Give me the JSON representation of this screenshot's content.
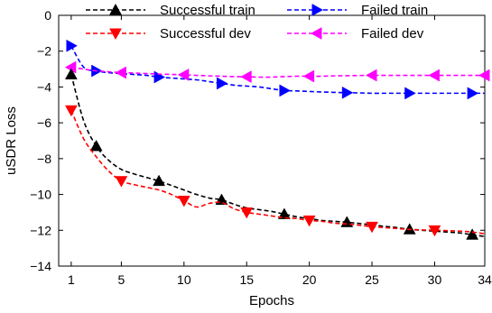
{
  "chart_data": {
    "type": "line",
    "xlabel": "Epochs",
    "ylabel": "uSDR Loss",
    "xlim": [
      0,
      34
    ],
    "ylim": [
      -14,
      0
    ],
    "xticks": [
      1,
      5,
      10,
      15,
      20,
      25,
      30,
      34
    ],
    "yticks": [
      0,
      -2,
      -4,
      -6,
      -8,
      -10,
      -12,
      -14
    ],
    "grid": false,
    "legend_position": "top, two columns",
    "series": [
      {
        "name": "Successful train",
        "color": "#000000",
        "marker": "triangle-up",
        "x": [
          1,
          2,
          3,
          4,
          5,
          6,
          7,
          8,
          9,
          10,
          11,
          12,
          13,
          14,
          15,
          16,
          17,
          18,
          19,
          20,
          21,
          22,
          23,
          24,
          25,
          26,
          27,
          28,
          29,
          30,
          31,
          32,
          33,
          34
        ],
        "y": [
          -3.3,
          -5.9,
          -7.3,
          -8.1,
          -8.6,
          -8.85,
          -9.05,
          -9.25,
          -9.5,
          -9.75,
          -10.0,
          -10.2,
          -10.3,
          -10.55,
          -10.75,
          -10.85,
          -10.95,
          -11.1,
          -11.25,
          -11.35,
          -11.45,
          -11.5,
          -11.55,
          -11.62,
          -11.7,
          -11.78,
          -11.85,
          -11.95,
          -12.0,
          -12.05,
          -12.1,
          -12.15,
          -12.25,
          -12.35
        ],
        "marker_x": [
          1,
          3,
          8,
          13,
          18,
          23,
          28,
          33
        ]
      },
      {
        "name": "Successful dev",
        "color": "#ff0000",
        "marker": "triangle-down",
        "x": [
          1,
          2,
          3,
          4,
          5,
          6,
          7,
          8,
          9,
          10,
          11,
          12,
          13,
          14,
          15,
          16,
          17,
          18,
          19,
          20,
          21,
          22,
          23,
          24,
          25,
          26,
          27,
          28,
          29,
          30,
          31,
          32,
          33,
          34
        ],
        "y": [
          -5.3,
          -6.9,
          -7.9,
          -8.7,
          -9.25,
          -9.45,
          -9.6,
          -9.75,
          -10.0,
          -10.35,
          -10.7,
          -10.5,
          -10.45,
          -10.8,
          -11.0,
          -11.1,
          -11.2,
          -11.3,
          -11.35,
          -11.45,
          -11.5,
          -11.6,
          -11.65,
          -11.72,
          -11.8,
          -11.85,
          -11.9,
          -11.95,
          -11.98,
          -12.0,
          -12.02,
          -12.05,
          -12.1,
          -12.2
        ],
        "marker_x": [
          1,
          5,
          10,
          15,
          20,
          25,
          30
        ]
      },
      {
        "name": "Failed train",
        "color": "#0000ff",
        "marker": "triangle-right",
        "x": [
          1,
          2,
          3,
          4,
          5,
          6,
          7,
          8,
          9,
          10,
          11,
          12,
          13,
          14,
          15,
          16,
          17,
          18,
          19,
          20,
          21,
          22,
          23,
          24,
          25,
          26,
          27,
          28,
          29,
          30,
          31,
          32,
          33,
          34
        ],
        "y": [
          -1.7,
          -2.9,
          -3.1,
          -3.2,
          -3.25,
          -3.3,
          -3.35,
          -3.45,
          -3.5,
          -3.55,
          -3.6,
          -3.7,
          -3.8,
          -3.9,
          -3.95,
          -4.0,
          -4.1,
          -4.2,
          -4.22,
          -4.25,
          -4.28,
          -4.3,
          -4.32,
          -4.33,
          -4.35,
          -4.35,
          -4.35,
          -4.35,
          -4.35,
          -4.35,
          -4.35,
          -4.35,
          -4.35,
          -4.35
        ],
        "marker_x": [
          1,
          3,
          8,
          13,
          18,
          23,
          28,
          33
        ]
      },
      {
        "name": "Failed dev",
        "color": "#ff00ff",
        "marker": "triangle-left",
        "x": [
          1,
          2,
          3,
          4,
          5,
          6,
          7,
          8,
          9,
          10,
          11,
          12,
          13,
          14,
          15,
          16,
          17,
          18,
          19,
          20,
          21,
          22,
          23,
          24,
          25,
          26,
          27,
          28,
          29,
          30,
          31,
          32,
          33,
          34
        ],
        "y": [
          -2.9,
          -3.0,
          -3.1,
          -3.15,
          -3.2,
          -3.22,
          -3.25,
          -3.28,
          -3.3,
          -3.32,
          -3.35,
          -3.38,
          -3.4,
          -3.42,
          -3.43,
          -3.45,
          -3.45,
          -3.42,
          -3.4,
          -3.4,
          -3.4,
          -3.38,
          -3.37,
          -3.36,
          -3.35,
          -3.35,
          -3.35,
          -3.35,
          -3.35,
          -3.35,
          -3.35,
          -3.35,
          -3.35,
          -3.35
        ],
        "marker_x": [
          1,
          5,
          10,
          15,
          20,
          25,
          30,
          34
        ]
      }
    ]
  }
}
